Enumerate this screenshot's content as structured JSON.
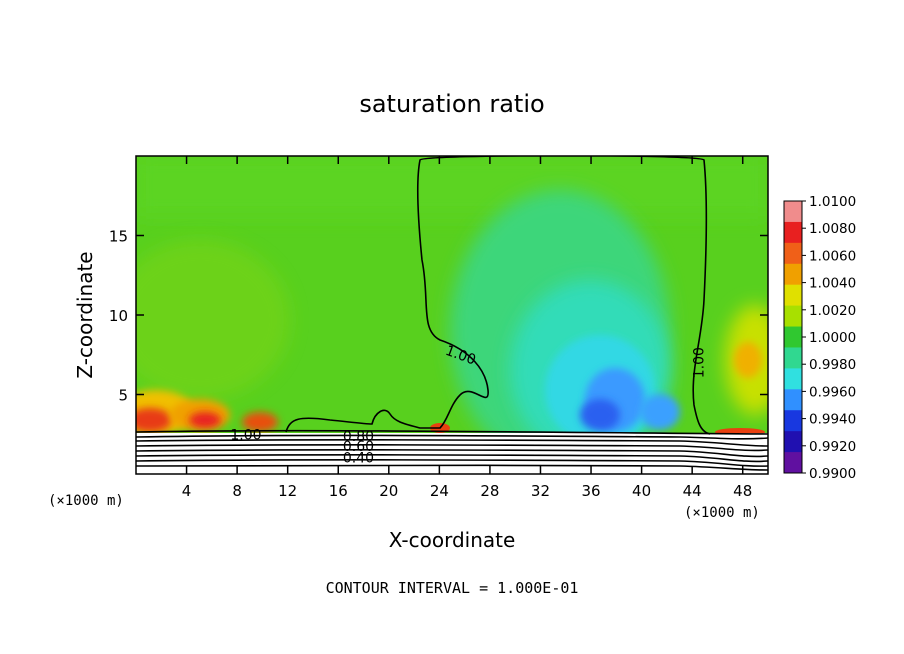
{
  "chart_data": {
    "type": "heatmap",
    "title": "saturation ratio",
    "xlabel": "X-coordinate",
    "ylabel": "Z-coordinate",
    "x_units": "(×1000 m)",
    "xlim": [
      0,
      50
    ],
    "ylim": [
      0,
      20
    ],
    "x_ticks": [
      4,
      8,
      12,
      16,
      20,
      24,
      28,
      32,
      36,
      40,
      44,
      48
    ],
    "y_ticks": [
      5,
      10,
      15
    ],
    "footer": "CONTOUR INTERVAL = 1.000E-01",
    "colorbar": {
      "labels": [
        "1.0100",
        "1.0080",
        "1.0060",
        "1.0040",
        "1.0020",
        "1.0000",
        "0.9980",
        "0.9960",
        "0.9940",
        "0.9920",
        "0.9900"
      ],
      "colors": [
        "#f08c8c",
        "#e82020",
        "#f06018",
        "#f0a000",
        "#e0e000",
        "#a8e000",
        "#30c830",
        "#30d890",
        "#30e0e0",
        "#3090ff",
        "#1838e0",
        "#2010b0",
        "#6010a0"
      ]
    },
    "contour_labels": [
      {
        "text": "1.00",
        "x": 8.7,
        "z": 2.5
      },
      {
        "text": "1.00",
        "x": 25.7,
        "z": 7.5
      },
      {
        "text": "1.00",
        "x": 44.5,
        "z": 7.0
      },
      {
        "text": "0.80",
        "x": 17.6,
        "z": 2.4
      },
      {
        "text": "0.60",
        "x": 17.6,
        "z": 1.75
      },
      {
        "text": "0.40",
        "x": 17.6,
        "z": 1.05
      }
    ]
  }
}
